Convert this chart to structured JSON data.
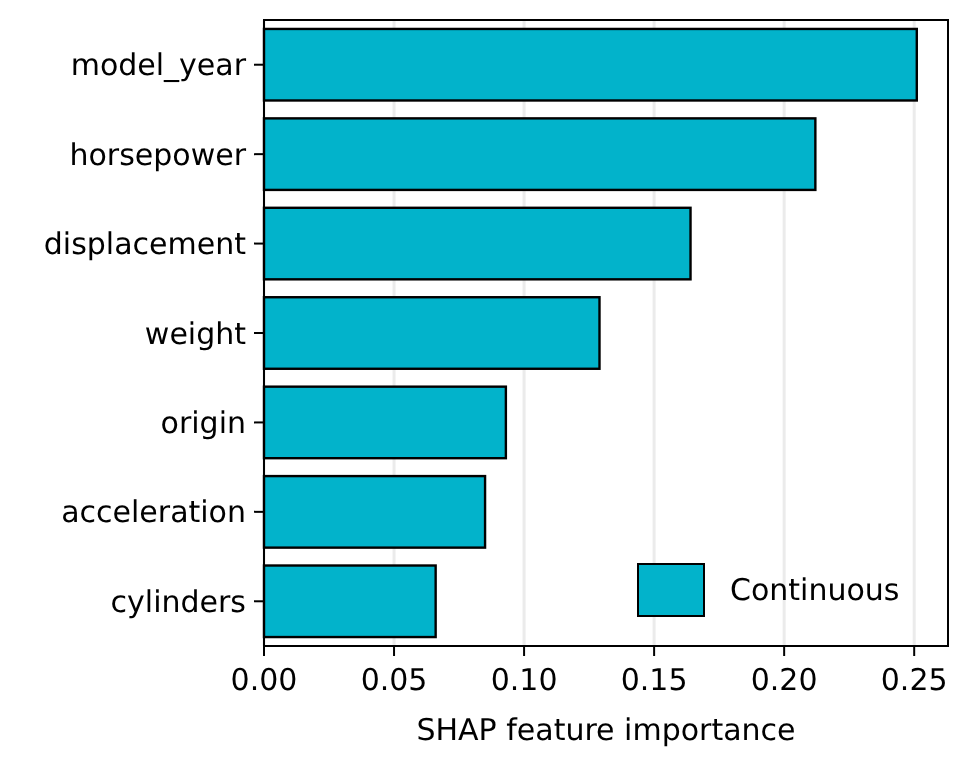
{
  "chart_data": {
    "type": "bar",
    "orientation": "horizontal",
    "xlabel": "SHAP feature importance",
    "categories": [
      "model_year",
      "horsepower",
      "displacement",
      "weight",
      "origin",
      "acceleration",
      "cylinders"
    ],
    "series": [
      {
        "name": "Continuous",
        "color": "#02b3cb",
        "values": [
          0.251,
          0.212,
          0.164,
          0.129,
          0.093,
          0.085,
          0.066
        ]
      }
    ],
    "xlim": [
      0,
      0.263
    ],
    "xticks": [
      {
        "value": 0,
        "label": "0.00"
      },
      {
        "value": 0.05,
        "label": "0.05"
      },
      {
        "value": 0.1,
        "label": "0.10"
      },
      {
        "value": 0.15,
        "label": "0.15"
      },
      {
        "value": 0.2,
        "label": "0.20"
      },
      {
        "value": 0.25,
        "label": "0.25"
      }
    ],
    "grid": "x",
    "legend": "bottom right"
  }
}
